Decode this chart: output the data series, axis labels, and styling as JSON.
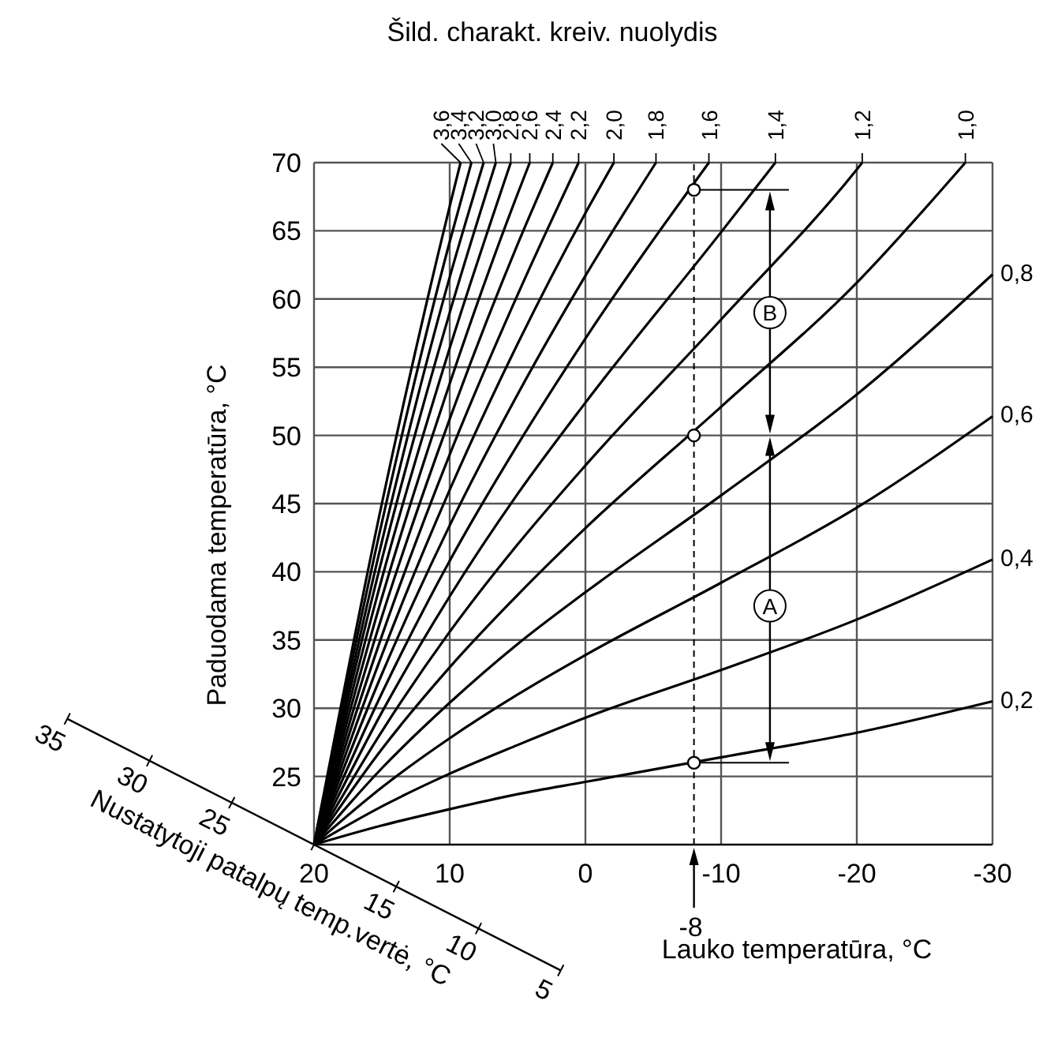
{
  "chart_data": {
    "type": "line",
    "legend_title": "Šild. charakt. kreiv. nuolydis",
    "xlabel": "Lauko temperatūra, °C",
    "ylabel": "Paduodama temperatūra, °C",
    "xlim": [
      20,
      -30
    ],
    "xticks": [
      20,
      10,
      0,
      -10,
      -20,
      -30
    ],
    "ylim": [
      20,
      70
    ],
    "yticks": [
      25,
      30,
      35,
      40,
      45,
      50,
      55,
      60,
      65,
      70
    ],
    "grid": true,
    "line_style": "solid",
    "series": [
      {
        "name": "0,2",
        "color": "#000000",
        "x": [
          20,
          15,
          10,
          5,
          0,
          -10,
          -20,
          -30
        ],
        "values": [
          20,
          21.4,
          22.6,
          23.7,
          24.6,
          26.4,
          28.2,
          30.5
        ]
      },
      {
        "name": "0,4",
        "color": "#000000",
        "x": [
          20,
          15,
          10,
          5,
          0,
          -10,
          -20,
          -30
        ],
        "values": [
          20,
          22.8,
          25.2,
          27.3,
          29.3,
          32.8,
          36.5,
          40.9
        ]
      },
      {
        "name": "0,6",
        "color": "#000000",
        "x": [
          20,
          15,
          10,
          5,
          0,
          -10,
          -20,
          -30
        ],
        "values": [
          20,
          24.2,
          27.8,
          31,
          33.9,
          39.2,
          44.7,
          51.4
        ]
      },
      {
        "name": "0,8",
        "color": "#000000",
        "x": [
          20,
          15,
          10,
          5,
          0,
          -10,
          -20,
          -30
        ],
        "values": [
          20,
          25.6,
          30.4,
          34.7,
          38.5,
          45.6,
          53,
          61.8
        ]
      },
      {
        "name": "1,0",
        "color": "#000000",
        "x": [
          20,
          15,
          10,
          5,
          0,
          -10,
          -20,
          -28
        ],
        "values": [
          20,
          27,
          33,
          38.3,
          43.2,
          52.1,
          61.2,
          70
        ]
      },
      {
        "name": "1,2",
        "color": "#000000",
        "x": [
          20,
          15,
          10,
          5,
          0,
          -10,
          -20,
          -20.4
        ],
        "values": [
          20,
          28.3,
          35.6,
          42,
          47.8,
          58.5,
          69.5,
          70
        ]
      },
      {
        "name": "1,4",
        "color": "#000000",
        "x": [
          20,
          15,
          10,
          5,
          0,
          -10,
          -14
        ],
        "values": [
          20,
          29.7,
          38.2,
          45.7,
          52.4,
          64.9,
          70
        ]
      },
      {
        "name": "1,6",
        "color": "#000000",
        "x": [
          20,
          15,
          10,
          5,
          0,
          -9.1
        ],
        "values": [
          20,
          31.1,
          40.8,
          49.3,
          57.1,
          70
        ]
      },
      {
        "name": "1,8",
        "color": "#000000",
        "x": [
          20,
          15,
          10,
          5,
          0,
          -5.2
        ],
        "values": [
          20,
          32.5,
          43.4,
          53,
          61.7,
          70
        ]
      },
      {
        "name": "2,0",
        "color": "#000000",
        "x": [
          20,
          15,
          10,
          5,
          0,
          -2.1
        ],
        "values": [
          20,
          33.9,
          46,
          56.7,
          66.3,
          70
        ]
      },
      {
        "name": "2,2",
        "color": "#000000",
        "x": [
          20,
          15,
          10,
          5,
          0.5
        ],
        "values": [
          20,
          35.3,
          48.6,
          60.3,
          70
        ]
      },
      {
        "name": "2,4",
        "color": "#000000",
        "x": [
          20,
          15,
          10,
          5,
          2.4
        ],
        "values": [
          20,
          36.7,
          51.2,
          64,
          70
        ]
      },
      {
        "name": "2,6",
        "color": "#000000",
        "x": [
          20,
          15,
          10,
          5,
          4.1
        ],
        "values": [
          20,
          38.1,
          53.8,
          67.7,
          70
        ]
      },
      {
        "name": "2,8",
        "color": "#000000",
        "x": [
          20,
          15,
          10,
          5.5
        ],
        "values": [
          20,
          39.5,
          56.4,
          70
        ]
      },
      {
        "name": "3,0",
        "color": "#000000",
        "x": [
          20,
          15,
          10,
          6.6
        ],
        "values": [
          20,
          40.9,
          59,
          70
        ]
      },
      {
        "name": "3,2",
        "color": "#000000",
        "x": [
          20,
          15,
          10,
          7.5
        ],
        "values": [
          20,
          42.2,
          61.6,
          70
        ]
      },
      {
        "name": "3,4",
        "color": "#000000",
        "x": [
          20,
          15,
          10,
          8.4
        ],
        "values": [
          20,
          43.6,
          64.2,
          70
        ]
      },
      {
        "name": "3,6",
        "color": "#000000",
        "x": [
          20,
          15,
          10,
          9.2
        ],
        "values": [
          20,
          45,
          66.8,
          70
        ]
      },
      {
        "type": "scatter",
        "color": "#000000",
        "marker": "circle",
        "x": [
          -8,
          -8,
          -8
        ],
        "values": [
          68,
          50,
          26
        ]
      }
    ],
    "ref_lines": [
      {
        "axis": "x",
        "value": -8,
        "label": "-8",
        "line_style": "dashed",
        "color": "#000000"
      }
    ],
    "annotations": [
      {
        "text": "B",
        "x": -13.6,
        "y": 59
      },
      {
        "text": "A",
        "x": -13.6,
        "y": 37.5
      },
      "Nustatytoji patalpų temp.vertė, °C",
      "35",
      "30",
      "25",
      "15",
      "10",
      "5"
    ]
  }
}
